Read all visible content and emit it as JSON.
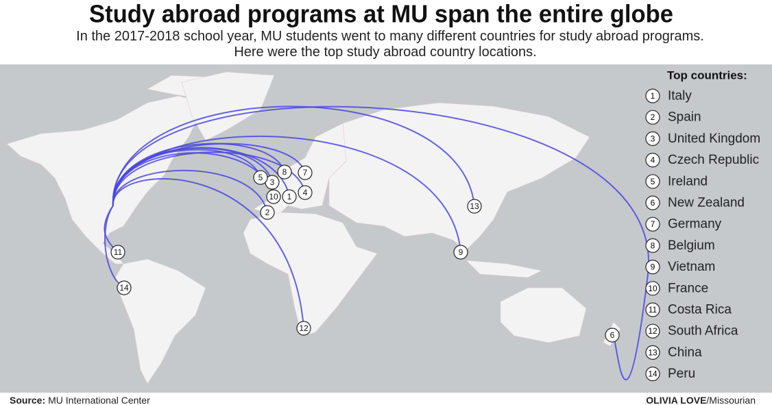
{
  "header": {
    "title": "Study abroad programs at MU span the entire globe",
    "subtitle": [
      "In the 2017-2018 school year, MU students went to many different countries for study abroad programs.",
      "Here were the top study abroad country locations."
    ]
  },
  "legend": {
    "heading": "Top countries:",
    "items": [
      {
        "number": "1",
        "name": "Italy"
      },
      {
        "number": "2",
        "name": "Spain"
      },
      {
        "number": "3",
        "name": "United Kingdom"
      },
      {
        "number": "4",
        "name": "Czech Republic"
      },
      {
        "number": "5",
        "name": "Ireland"
      },
      {
        "number": "6",
        "name": "New Zealand"
      },
      {
        "number": "7",
        "name": "Germany"
      },
      {
        "number": "8",
        "name": "Belgium"
      },
      {
        "number": "9",
        "name": "Vietnam"
      },
      {
        "number": "10",
        "name": "France"
      },
      {
        "number": "11",
        "name": "Costa Rica"
      },
      {
        "number": "12",
        "name": "South Africa"
      },
      {
        "number": "13",
        "name": "China"
      },
      {
        "number": "14",
        "name": "Peru"
      }
    ]
  },
  "footer": {
    "source_label": "Source:",
    "source": "MU International Center",
    "credit_name": "OLIVIA LOVE",
    "credit_org": "/Missourian"
  }
}
